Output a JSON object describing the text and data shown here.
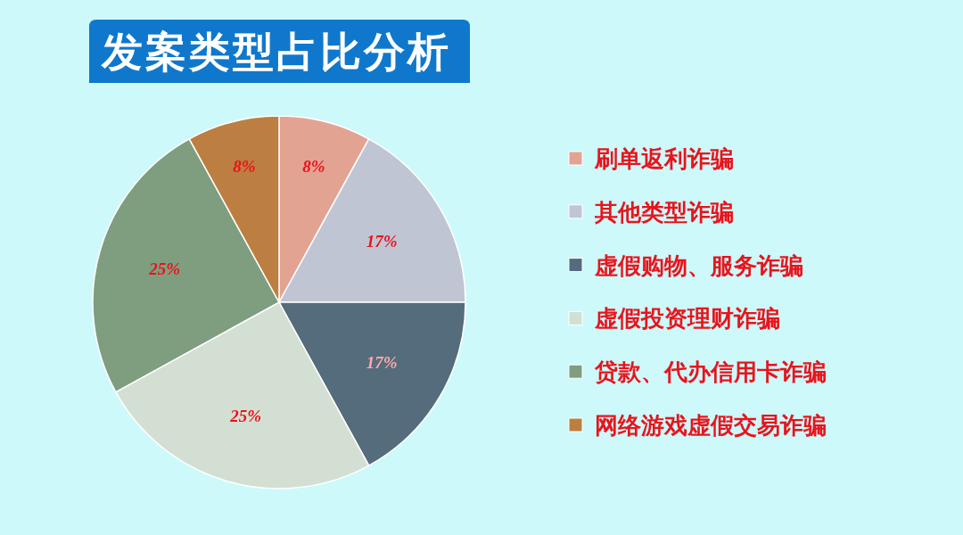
{
  "chart_data": {
    "type": "pie",
    "title": "发案类型占比分析",
    "categories": [
      "刷单返利诈骗",
      "其他类型诈骗",
      "虚假购物、服务诈骗",
      "虚假投资理财诈骗",
      "贷款、代办信用卡诈骗",
      "网络游戏虚假交易诈骗"
    ],
    "values": [
      8,
      17,
      17,
      25,
      25,
      8
    ],
    "colors": [
      "#e3a393",
      "#c0c5d3",
      "#546c7c",
      "#d4dfd3",
      "#7e9e7f",
      "#bc7f41"
    ],
    "value_labels": [
      "8%",
      "17%",
      "17%",
      "25%",
      "25%",
      "8%"
    ],
    "legend": "right"
  }
}
